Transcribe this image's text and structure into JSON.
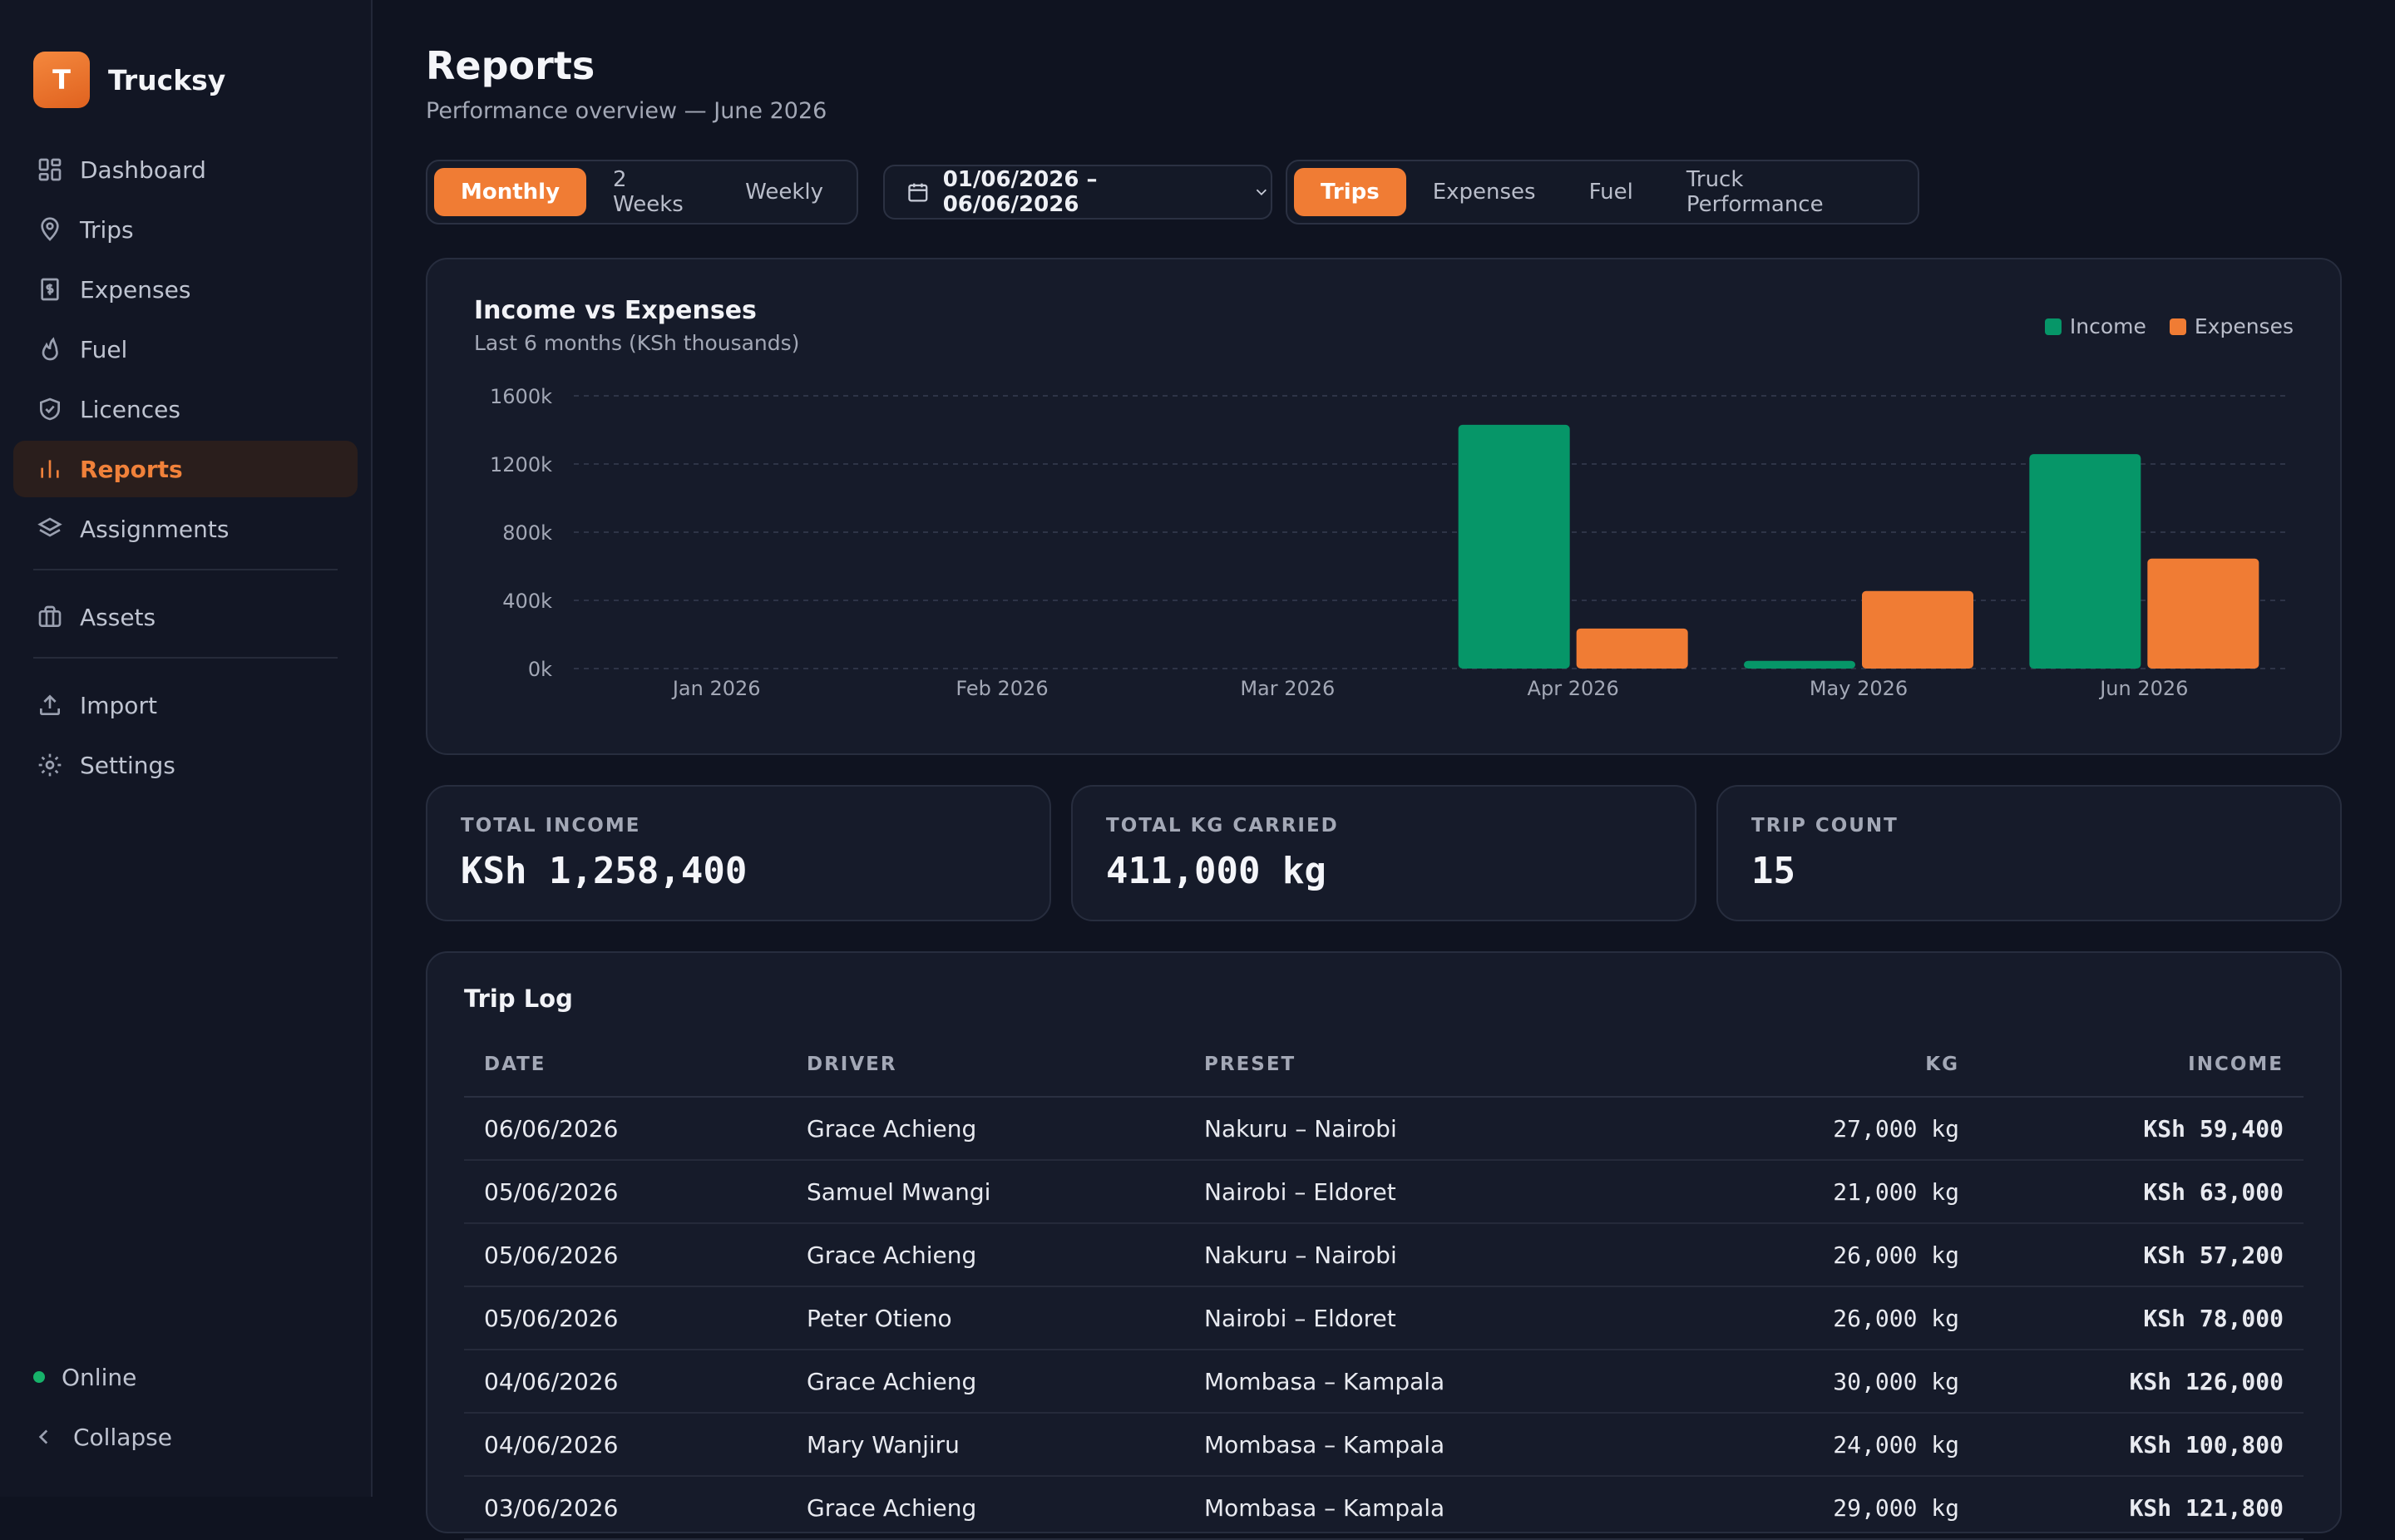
{
  "brand": {
    "logo_letter": "T",
    "name": "Trucksy"
  },
  "sidebar": {
    "items": [
      {
        "label": "Dashboard",
        "icon": "dashboard-icon"
      },
      {
        "label": "Trips",
        "icon": "map-pin-icon"
      },
      {
        "label": "Expenses",
        "icon": "receipt-dollar-icon"
      },
      {
        "label": "Fuel",
        "icon": "flame-icon"
      },
      {
        "label": "Licences",
        "icon": "shield-check-icon"
      },
      {
        "label": "Reports",
        "icon": "bar-chart-icon",
        "active": true
      },
      {
        "label": "Assignments",
        "icon": "layers-icon"
      },
      {
        "label": "Assets",
        "icon": "briefcase-icon"
      },
      {
        "label": "Import",
        "icon": "upload-icon"
      },
      {
        "label": "Settings",
        "icon": "gear-icon"
      }
    ],
    "status": "Online",
    "collapse_label": "Collapse"
  },
  "header": {
    "title": "Reports",
    "subtitle": "Performance overview — June 2026"
  },
  "period_tabs": {
    "options": [
      "Monthly",
      "2 Weeks",
      "Weekly"
    ],
    "selected": "Monthly"
  },
  "date_range": {
    "label": "01/06/2026 – 06/06/2026"
  },
  "report_tabs": {
    "options": [
      "Trips",
      "Expenses",
      "Fuel",
      "Truck Performance"
    ],
    "selected": "Trips"
  },
  "colors": {
    "accent": "#f07c34",
    "income": "#069668",
    "expenses": "#f07c34"
  },
  "chart_data": {
    "type": "bar",
    "title": "Income vs Expenses",
    "subtitle": "Last 6 months (KSh thousands)",
    "categories": [
      "Jan 2026",
      "Feb 2026",
      "Mar 2026",
      "Apr 2026",
      "May 2026",
      "Jun 2026"
    ],
    "series": [
      {
        "name": "Income",
        "color": "#069668",
        "values": [
          0,
          0,
          0,
          1430,
          45,
          1258
        ]
      },
      {
        "name": "Expenses",
        "color": "#f07c34",
        "values": [
          0,
          0,
          0,
          235,
          455,
          645
        ]
      }
    ],
    "yticks": [
      "0k",
      "400k",
      "800k",
      "1200k",
      "1600k"
    ],
    "ylim": [
      0,
      1600
    ],
    "grid": true,
    "legend": "top-right"
  },
  "stats": [
    {
      "label": "TOTAL INCOME",
      "value": "KSh 1,258,400"
    },
    {
      "label": "TOTAL KG CARRIED",
      "value": "411,000 kg"
    },
    {
      "label": "TRIP COUNT",
      "value": "15"
    }
  ],
  "trip_log": {
    "title": "Trip Log",
    "columns": [
      "DATE",
      "DRIVER",
      "PRESET",
      "KG",
      "INCOME"
    ],
    "rows": [
      [
        "06/06/2026",
        "Grace Achieng",
        "Nakuru – Nairobi",
        "27,000 kg",
        "KSh 59,400"
      ],
      [
        "05/06/2026",
        "Samuel Mwangi",
        "Nairobi – Eldoret",
        "21,000 kg",
        "KSh 63,000"
      ],
      [
        "05/06/2026",
        "Grace Achieng",
        "Nakuru – Nairobi",
        "26,000 kg",
        "KSh 57,200"
      ],
      [
        "05/06/2026",
        "Peter Otieno",
        "Nairobi – Eldoret",
        "26,000 kg",
        "KSh 78,000"
      ],
      [
        "04/06/2026",
        "Grace Achieng",
        "Mombasa – Kampala",
        "30,000 kg",
        "KSh 126,000"
      ],
      [
        "04/06/2026",
        "Mary Wanjiru",
        "Mombasa – Kampala",
        "24,000 kg",
        "KSh 100,800"
      ],
      [
        "03/06/2026",
        "Grace Achieng",
        "Mombasa – Kampala",
        "29,000 kg",
        "KSh 121,800"
      ]
    ]
  }
}
